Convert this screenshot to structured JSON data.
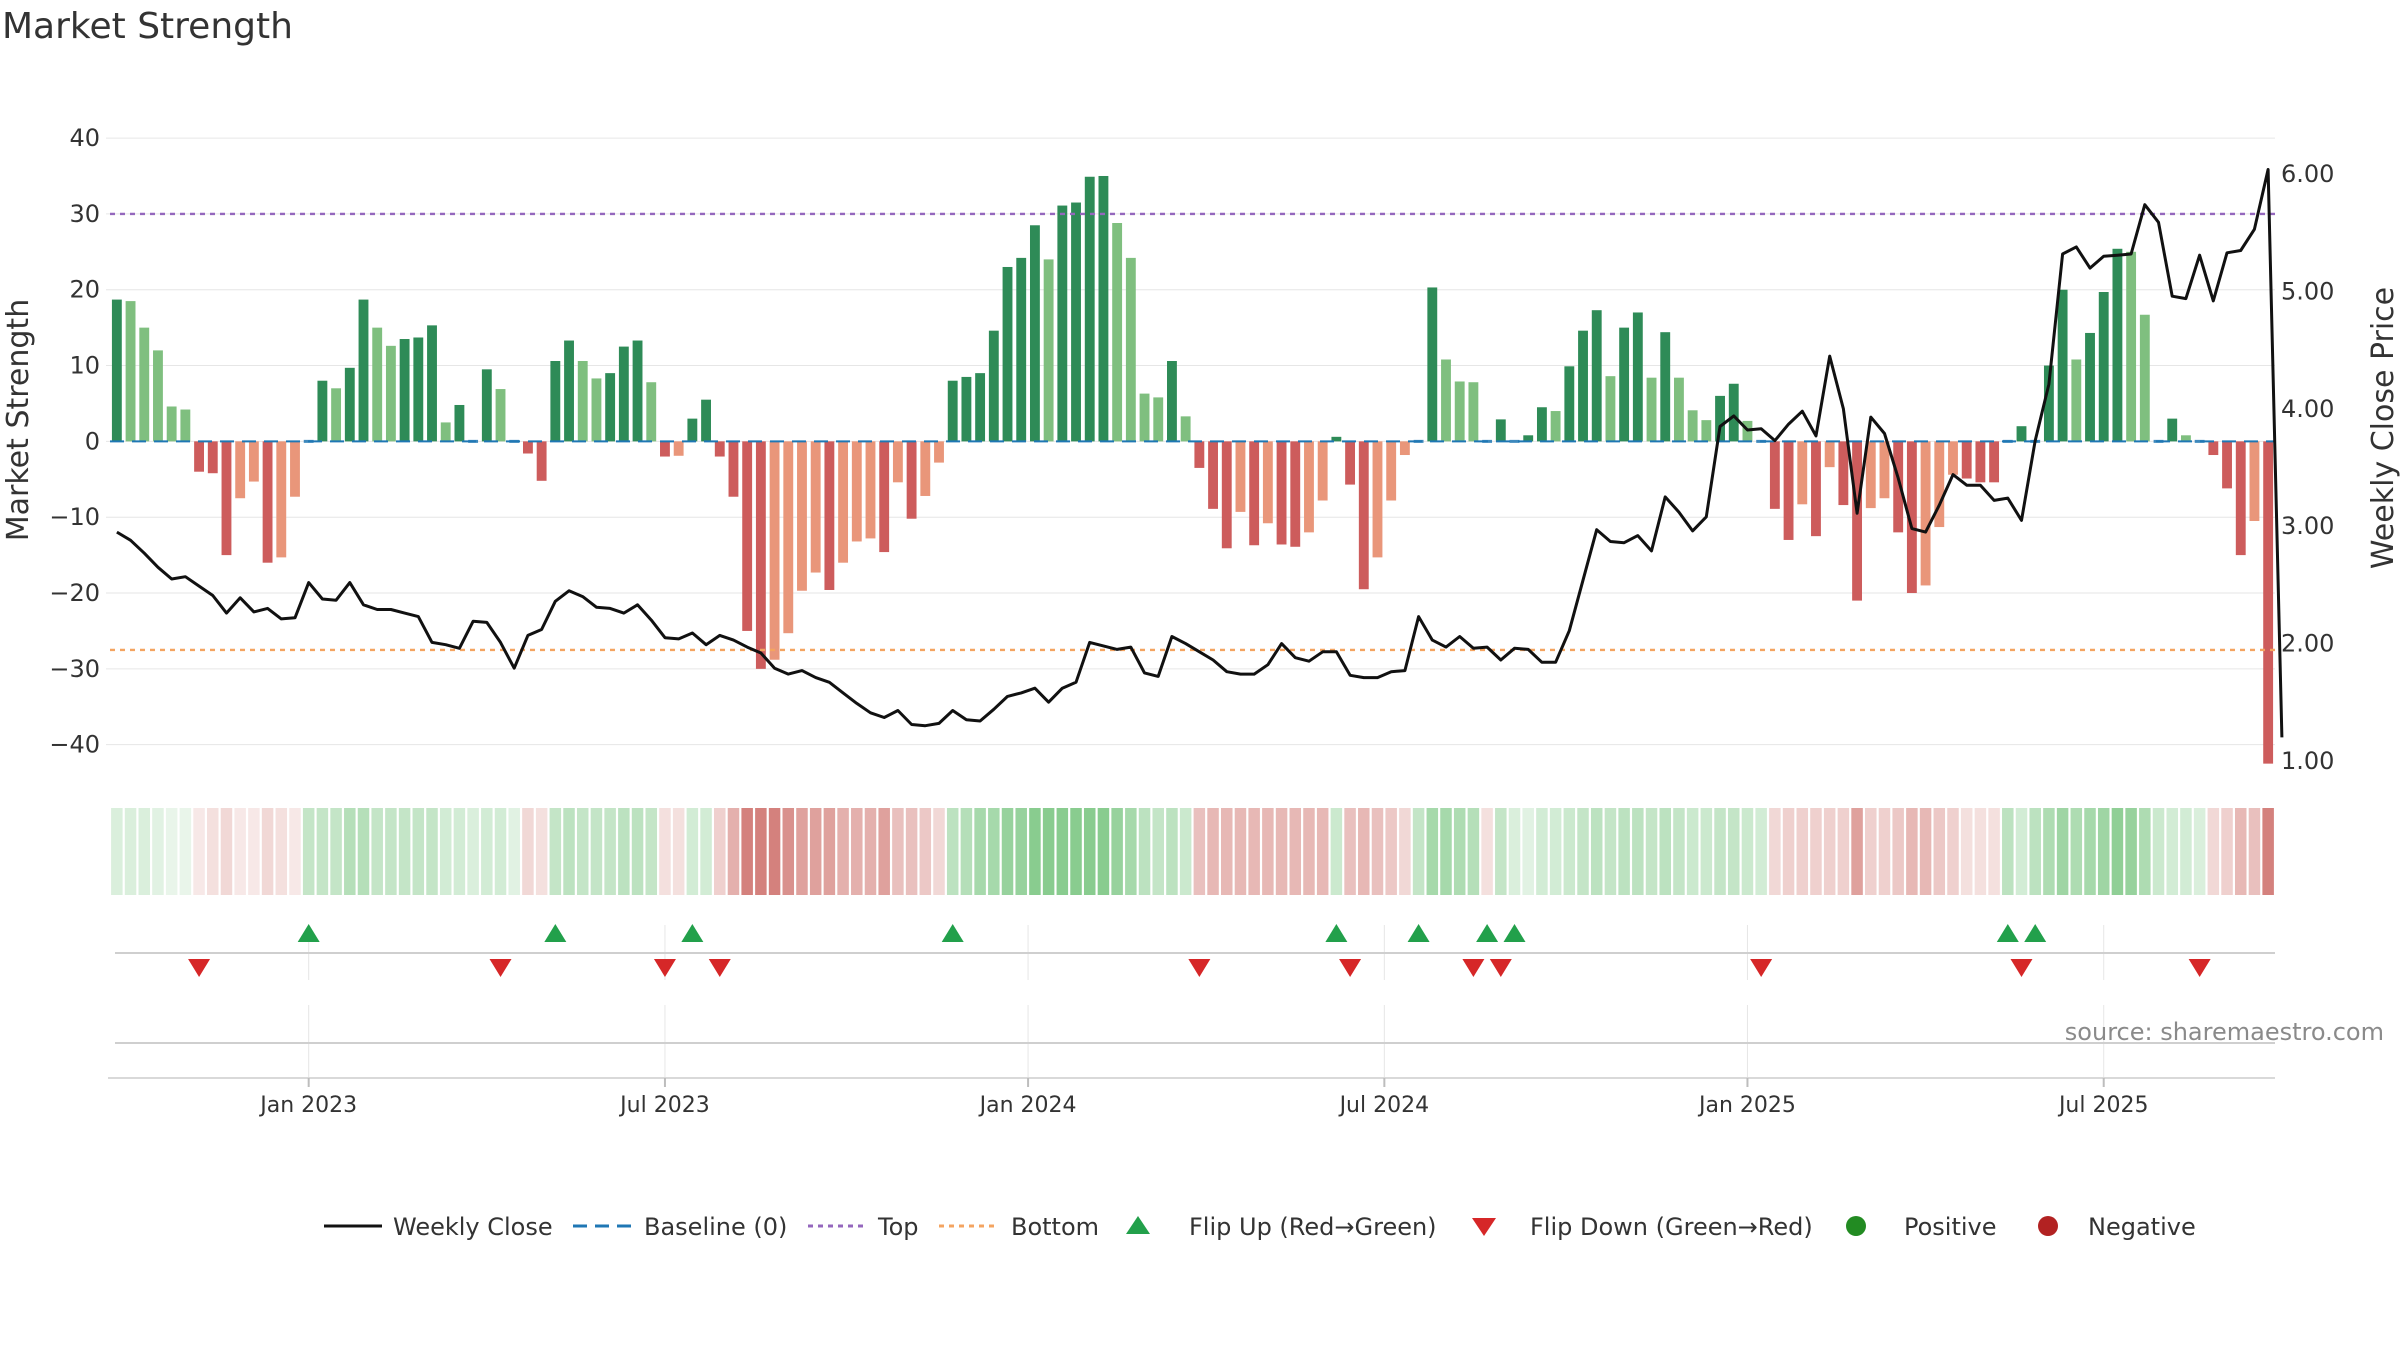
{
  "colors": {
    "pos_strong": "#2e8b57",
    "pos_weak": "#7fbf7f",
    "neg_strong": "#cd5c5c",
    "neg_weak": "#e9967a",
    "close_line": "#111111",
    "baseline": "#1f77b4",
    "top_line": "#9467bd",
    "bottom_line": "#f4a460",
    "flip_up": "#22a04b",
    "flip_down": "#d62728",
    "positive_dot": "#228b22",
    "negative_dot": "#b22222",
    "grid": "#e6e6e6",
    "heat_pos": "#6bbf73",
    "heat_neg": "#c9625c"
  },
  "chart_data": {
    "type": "bar",
    "title": "Market Strength",
    "ylabel": "Market Strength",
    "y2label": "Weekly Close Price",
    "ylim": [
      -44,
      47
    ],
    "y2lim": [
      0.88,
      6.76
    ],
    "yticks": [
      "40",
      "30",
      "20",
      "10",
      "0",
      "−10",
      "−20",
      "−30",
      "−40"
    ],
    "yticks_values": [
      40,
      30,
      20,
      10,
      0,
      -10,
      -20,
      -30,
      -40
    ],
    "y2ticks": [
      "6.00",
      "5.00",
      "4.00",
      "3.00",
      "2.00",
      "1.00"
    ],
    "y2ticks_values": [
      6,
      5,
      4,
      3,
      2,
      1
    ],
    "xlabels": [
      "Jan 2023",
      "Jul 2023",
      "Jan 2024",
      "Jul 2024",
      "Jan 2025",
      "Jul 2025"
    ],
    "xlabels_week_index": [
      14.5,
      40.5,
      67,
      93,
      119.5,
      145.5
    ],
    "top_threshold": 30,
    "bottom_threshold": -27.5,
    "baseline": 0,
    "strength": [
      18.7,
      18.5,
      15,
      12,
      4.6,
      4.2,
      -4,
      -4.2,
      -15,
      -7.5,
      -5.3,
      -16,
      -15.3,
      -7.3,
      0,
      8,
      7,
      9.7,
      18.7,
      15,
      12.6,
      13.5,
      13.7,
      15.3,
      2.5,
      4.8,
      0.3,
      9.5,
      6.9,
      0,
      -1.6,
      -5.2,
      10.6,
      13.3,
      10.6,
      8.3,
      9,
      12.5,
      13.3,
      7.8,
      -2,
      -1.9,
      3,
      5.5,
      -2,
      -7.3,
      -25,
      -30,
      -28.8,
      -25.3,
      -19.7,
      -17.3,
      -19.6,
      -16,
      -13.2,
      -12.8,
      -14.6,
      -5.4,
      -10.2,
      -7.2,
      -2.8,
      8,
      8.5,
      9,
      14.6,
      23,
      24.2,
      28.5,
      24,
      31.1,
      31.5,
      34.9,
      35,
      28.8,
      24.2,
      6.3,
      5.8,
      10.6,
      3.3,
      -3.5,
      -8.9,
      -14.1,
      -9.3,
      -13.7,
      -10.8,
      -13.6,
      -13.9,
      -12,
      -7.8,
      0.6,
      -5.7,
      -19.5,
      -15.3,
      -7.8,
      -1.8,
      0,
      20.3,
      10.8,
      7.9,
      7.8,
      -0.5,
      2.9,
      0,
      0.8,
      4.5,
      4,
      9.9,
      14.6,
      17.3,
      8.6,
      15,
      17,
      8.4,
      14.4,
      8.4,
      4.1,
      2.8,
      6,
      7.6,
      2.7,
      0,
      -8.9,
      -13,
      -8.3,
      -12.5,
      -3.4,
      -8.4,
      -21,
      -8.8,
      -7.5,
      -12,
      -20,
      -19,
      -11.3,
      -4.4,
      -4.9,
      -5.4,
      -5.4,
      0,
      2,
      0,
      10,
      20,
      10.8,
      14.3,
      19.7,
      25.4,
      25,
      16.7,
      0,
      3,
      0.8,
      0,
      -1.8,
      -6.2,
      -15,
      -10.5,
      -42.5
    ],
    "close": [
      2.95,
      2.88,
      2.77,
      2.65,
      2.55,
      2.57,
      2.49,
      2.41,
      2.26,
      2.39,
      2.27,
      2.3,
      2.21,
      2.22,
      2.52,
      2.38,
      2.37,
      2.52,
      2.33,
      2.29,
      2.29,
      2.26,
      2.23,
      2.01,
      1.99,
      1.96,
      2.19,
      2.18,
      2.01,
      1.79,
      2.07,
      2.12,
      2.36,
      2.45,
      2.4,
      2.31,
      2.3,
      2.26,
      2.33,
      2.2,
      2.05,
      2.04,
      2.09,
      1.99,
      2.07,
      2.03,
      1.97,
      1.92,
      1.79,
      1.74,
      1.77,
      1.71,
      1.67,
      1.58,
      1.49,
      1.41,
      1.37,
      1.43,
      1.31,
      1.3,
      1.32,
      1.43,
      1.35,
      1.34,
      1.44,
      1.55,
      1.58,
      1.62,
      1.5,
      1.62,
      1.67,
      2.01,
      1.98,
      1.95,
      1.97,
      1.75,
      1.72,
      2.06,
      2,
      1.93,
      1.86,
      1.76,
      1.74,
      1.74,
      1.82,
      2.0,
      1.88,
      1.85,
      1.93,
      1.93,
      1.73,
      1.71,
      1.71,
      1.76,
      1.77,
      2.23,
      2.03,
      1.97,
      2.06,
      1.96,
      1.97,
      1.86,
      1.96,
      1.95,
      1.84,
      1.84,
      2.11,
      2.54,
      2.97,
      2.87,
      2.86,
      2.92,
      2.79,
      3.25,
      3.12,
      2.96,
      3.08,
      3.85,
      3.94,
      3.82,
      3.83,
      3.73,
      3.87,
      3.98,
      3.77,
      4.45,
      4.0,
      3.11,
      3.93,
      3.79,
      3.41,
      2.98,
      2.95,
      3.18,
      3.44,
      3.35,
      3.35,
      3.22,
      3.24,
      3.05,
      3.73,
      4.21,
      5.32,
      5.38,
      5.2,
      5.3,
      5.31,
      5.32,
      5.74,
      5.59,
      4.96,
      4.94,
      5.31,
      4.92,
      5.33,
      5.35,
      5.53,
      6.04,
      1.2
    ],
    "heat_level": [
      0.25,
      0.25,
      0.25,
      0.2,
      0.15,
      0.15,
      0.15,
      0.2,
      0.25,
      0.15,
      0.15,
      0.25,
      0.2,
      0.15,
      0.4,
      0.4,
      0.4,
      0.5,
      0.5,
      0.4,
      0.4,
      0.4,
      0.4,
      0.4,
      0.3,
      0.3,
      0.25,
      0.3,
      0.3,
      0.2,
      0.25,
      0.2,
      0.4,
      0.45,
      0.4,
      0.4,
      0.4,
      0.45,
      0.45,
      0.4,
      0.2,
      0.2,
      0.3,
      0.3,
      0.3,
      0.5,
      0.8,
      0.8,
      0.8,
      0.7,
      0.6,
      0.6,
      0.6,
      0.5,
      0.5,
      0.5,
      0.6,
      0.4,
      0.4,
      0.35,
      0.25,
      0.45,
      0.5,
      0.6,
      0.6,
      0.7,
      0.7,
      0.8,
      0.8,
      0.8,
      0.8,
      0.8,
      0.8,
      0.7,
      0.6,
      0.45,
      0.4,
      0.45,
      0.35,
      0.4,
      0.45,
      0.45,
      0.45,
      0.45,
      0.45,
      0.45,
      0.45,
      0.45,
      0.45,
      0.35,
      0.4,
      0.45,
      0.4,
      0.35,
      0.25,
      0.4,
      0.6,
      0.6,
      0.55,
      0.5,
      0.2,
      0.4,
      0.25,
      0.2,
      0.3,
      0.3,
      0.35,
      0.4,
      0.45,
      0.4,
      0.45,
      0.45,
      0.4,
      0.45,
      0.4,
      0.35,
      0.35,
      0.4,
      0.4,
      0.35,
      0.3,
      0.25,
      0.3,
      0.3,
      0.3,
      0.3,
      0.3,
      0.6,
      0.3,
      0.3,
      0.35,
      0.45,
      0.45,
      0.35,
      0.3,
      0.2,
      0.2,
      0.2,
      0.45,
      0.3,
      0.45,
      0.55,
      0.65,
      0.55,
      0.6,
      0.65,
      0.75,
      0.7,
      0.55,
      0.35,
      0.3,
      0.3,
      0.25,
      0.25,
      0.3,
      0.45,
      0.4,
      0.8
    ],
    "flips_up": [
      14,
      32,
      42,
      61,
      89,
      95,
      100,
      102,
      138,
      140
    ],
    "flips_down": [
      6,
      28,
      40,
      44,
      79,
      90,
      99,
      101,
      120,
      139,
      152
    ]
  },
  "legend": [
    {
      "label": "Weekly Close",
      "kind": "line"
    },
    {
      "label": "Baseline (0)",
      "kind": "dash"
    },
    {
      "label": "Top",
      "kind": "dot-purple"
    },
    {
      "label": "Bottom",
      "kind": "dot-orange"
    },
    {
      "label": "Flip Up (Red→Green)",
      "kind": "tri-up"
    },
    {
      "label": "Flip Down (Green→Red)",
      "kind": "tri-down"
    },
    {
      "label": "Positive",
      "kind": "dot-green"
    },
    {
      "label": "Negative",
      "kind": "dot-red"
    }
  ],
  "source": "source: sharemaestro.com"
}
